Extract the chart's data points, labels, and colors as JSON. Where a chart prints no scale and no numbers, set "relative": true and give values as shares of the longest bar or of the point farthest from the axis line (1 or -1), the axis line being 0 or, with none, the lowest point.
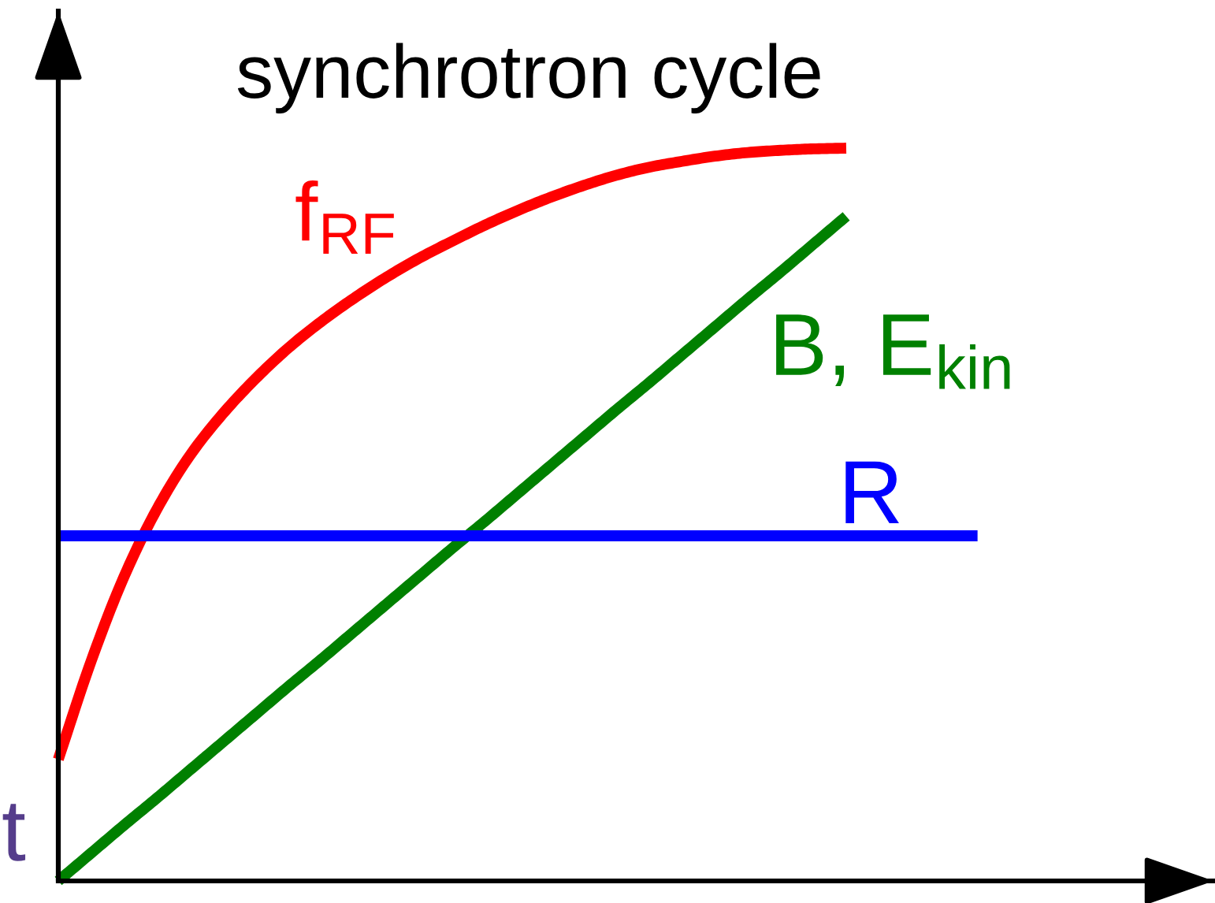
{
  "chart_data": {
    "type": "line",
    "title": "synchrotron cycle",
    "xlabel": "t",
    "relative": true,
    "categories": [
      null,
      null,
      null,
      null,
      null,
      null,
      null,
      null,
      null,
      null,
      null,
      null,
      null,
      null,
      null,
      null,
      null,
      null,
      null,
      null,
      null,
      null,
      null,
      null,
      null,
      null,
      null,
      null,
      null
    ],
    "series": [
      {
        "name": "f$_{RF}$",
        "color": "#ff0000",
        "values": [
          0.166,
          0.3,
          0.415,
          0.507,
          0.58,
          0.637,
          0.685,
          0.727,
          0.763,
          0.795,
          0.824,
          0.85,
          0.873,
          0.895,
          0.915,
          0.933,
          0.949,
          0.963,
          0.974,
          0.982,
          0.989,
          0.994,
          0.997,
          0.999,
          1.0,
          null,
          null,
          null,
          null
        ]
      },
      {
        "name": "B, E$_{kin}$",
        "color": "#008000",
        "values": [
          0,
          0.038,
          0.076,
          0.113,
          0.151,
          0.189,
          0.227,
          0.265,
          0.302,
          0.34,
          0.378,
          0.416,
          0.454,
          0.491,
          0.529,
          0.567,
          0.605,
          0.643,
          0.68,
          0.718,
          0.756,
          0.794,
          0.831,
          0.869,
          0.907,
          null,
          null,
          null,
          null
        ]
      },
      {
        "name": "R",
        "color": "#0000ff",
        "values": [
          0.471,
          0.471,
          0.471,
          0.471,
          0.471,
          0.471,
          0.471,
          0.471,
          0.471,
          0.471,
          0.471,
          0.471,
          0.471,
          0.471,
          0.471,
          0.471,
          0.471,
          0.471,
          0.471,
          0.471,
          0.471,
          0.471,
          0.471,
          0.471,
          0.471,
          0.471,
          0.471,
          0.471,
          0.471
        ]
      }
    ]
  }
}
